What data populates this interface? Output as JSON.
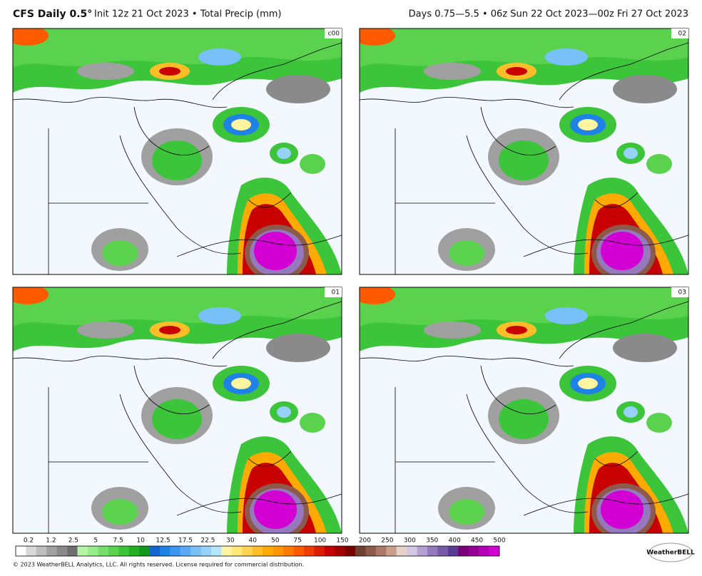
{
  "header": {
    "model": "CFS Daily 0.5°",
    "title": "Init 12z 21 Oct 2023 • Total Precip (mm)",
    "valid": "Days 0.75—5.5 • 06z Sun 22 Oct 2023—00z Fri 27 Oct 2023"
  },
  "panels": [
    {
      "label": "c00"
    },
    {
      "label": "02"
    },
    {
      "label": "01"
    },
    {
      "label": "03"
    }
  ],
  "colorbar": {
    "labels": [
      0.2,
      1.2,
      2.5,
      5,
      7.5,
      10,
      12.5,
      17.5,
      22.5,
      30,
      40,
      50,
      75,
      100,
      150,
      200,
      250,
      300,
      350,
      400,
      450,
      500
    ],
    "colors": [
      "#ffffff",
      "#d9d9d9",
      "#bdbdbd",
      "#a0a0a0",
      "#8a8a8a",
      "#6f6f6f",
      "#b4f5a8",
      "#96ee8a",
      "#78e06a",
      "#5ad24e",
      "#3cc43a",
      "#22b022",
      "#12981a",
      "#1464d2",
      "#1e82e6",
      "#3c96f0",
      "#5aaaf5",
      "#78c0f8",
      "#96d2fa",
      "#b4e6fc",
      "#fff5a0",
      "#ffe678",
      "#ffd250",
      "#ffbe28",
      "#ffaa00",
      "#ff9600",
      "#ff7800",
      "#ff5a00",
      "#f03c00",
      "#dc1e00",
      "#c80000",
      "#a00000",
      "#780000",
      "#6e4032",
      "#8c5a4b",
      "#aa7864",
      "#c8a08c",
      "#e6d2c8",
      "#d2c8e6",
      "#b4a0d2",
      "#9678be",
      "#785aaa",
      "#5a3c96",
      "#780078",
      "#960096",
      "#b400b4",
      "#d200d2"
    ]
  },
  "footer": {
    "copyright": "© 2023 WeatherBELL Analytics, LLC. All rights reserved. License required for commercial distribution.",
    "logo": "WeatherBELL"
  }
}
